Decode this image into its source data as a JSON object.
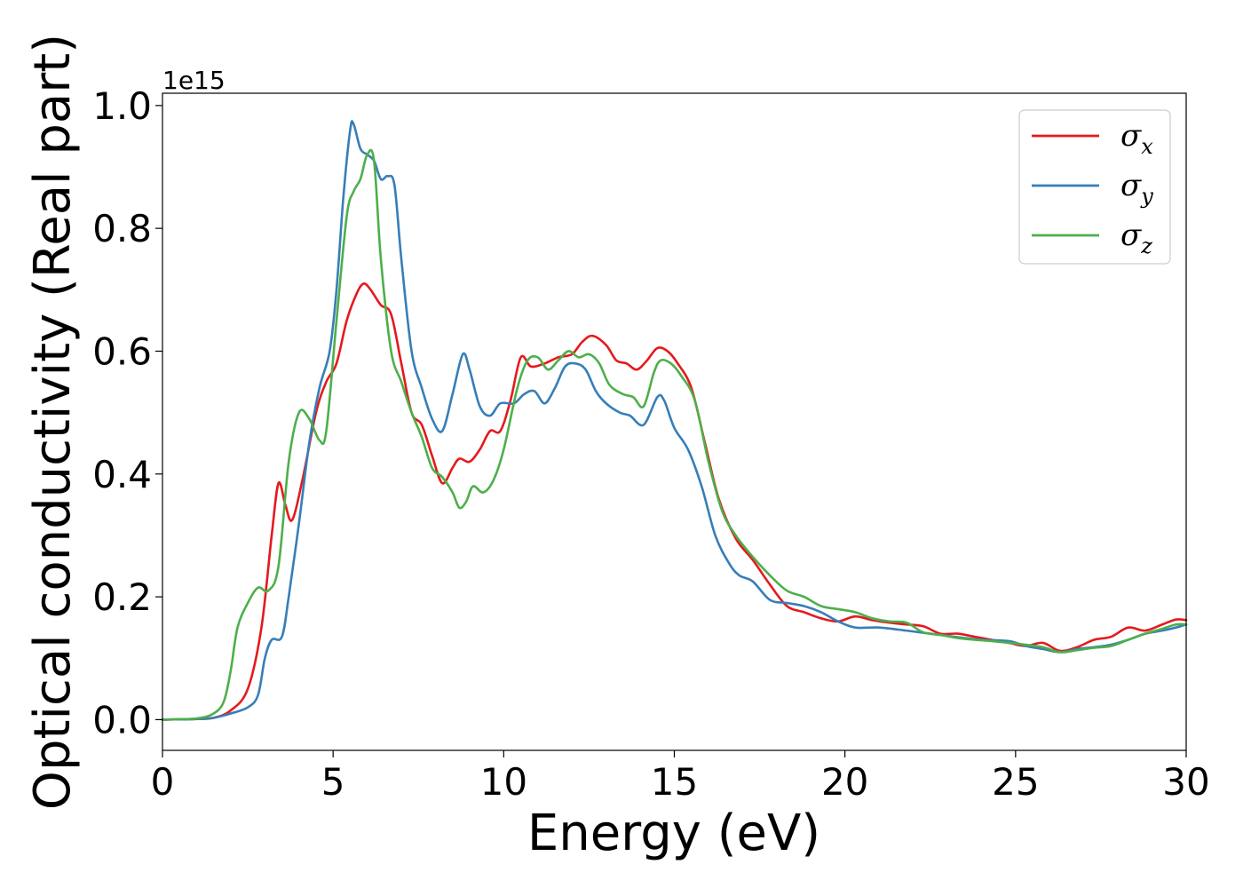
{
  "chart_data": {
    "type": "line",
    "title": "",
    "xlabel": "Energy (eV)",
    "ylabel": "Optical conductivity (Real part)",
    "y_offset_label": "1e15",
    "xlim": [
      0,
      30
    ],
    "ylim": [
      -0.05,
      1.02
    ],
    "x_ticks": [
      0,
      5,
      10,
      15,
      20,
      25,
      30
    ],
    "x_tick_labels": [
      "0",
      "5",
      "10",
      "15",
      "20",
      "25",
      "30"
    ],
    "y_ticks": [
      0.0,
      0.2,
      0.4,
      0.6,
      0.8,
      1.0
    ],
    "y_tick_labels": [
      "0.0",
      "0.2",
      "0.4",
      "0.6",
      "0.8",
      "1.0"
    ],
    "grid": false,
    "legend_position": "top-right",
    "series": [
      {
        "name": "σx",
        "legend_symbol": "σ",
        "legend_subscript": "x",
        "color": "#e41a1c",
        "points": [
          [
            0,
            0
          ],
          [
            1,
            0.001
          ],
          [
            1.5,
            0.003
          ],
          [
            2,
            0.015
          ],
          [
            2.5,
            0.05
          ],
          [
            2.9,
            0.15
          ],
          [
            3.2,
            0.3
          ],
          [
            3.4,
            0.385
          ],
          [
            3.6,
            0.35
          ],
          [
            3.8,
            0.325
          ],
          [
            4.1,
            0.39
          ],
          [
            4.5,
            0.5
          ],
          [
            4.8,
            0.55
          ],
          [
            5.1,
            0.58
          ],
          [
            5.4,
            0.65
          ],
          [
            5.7,
            0.695
          ],
          [
            5.9,
            0.71
          ],
          [
            6.1,
            0.7
          ],
          [
            6.4,
            0.675
          ],
          [
            6.7,
            0.66
          ],
          [
            7,
            0.58
          ],
          [
            7.3,
            0.5
          ],
          [
            7.6,
            0.48
          ],
          [
            7.9,
            0.43
          ],
          [
            8.2,
            0.385
          ],
          [
            8.5,
            0.41
          ],
          [
            8.7,
            0.425
          ],
          [
            9.0,
            0.42
          ],
          [
            9.3,
            0.44
          ],
          [
            9.6,
            0.47
          ],
          [
            9.9,
            0.47
          ],
          [
            10.2,
            0.52
          ],
          [
            10.5,
            0.59
          ],
          [
            10.8,
            0.575
          ],
          [
            11.2,
            0.58
          ],
          [
            11.6,
            0.59
          ],
          [
            12,
            0.595
          ],
          [
            12.3,
            0.615
          ],
          [
            12.6,
            0.625
          ],
          [
            13,
            0.61
          ],
          [
            13.3,
            0.585
          ],
          [
            13.6,
            0.58
          ],
          [
            13.9,
            0.57
          ],
          [
            14.2,
            0.585
          ],
          [
            14.5,
            0.605
          ],
          [
            14.8,
            0.6
          ],
          [
            15.1,
            0.58
          ],
          [
            15.5,
            0.54
          ],
          [
            15.9,
            0.45
          ],
          [
            16.3,
            0.36
          ],
          [
            16.8,
            0.295
          ],
          [
            17.3,
            0.26
          ],
          [
            17.8,
            0.22
          ],
          [
            18.3,
            0.185
          ],
          [
            18.8,
            0.175
          ],
          [
            19.3,
            0.165
          ],
          [
            19.8,
            0.16
          ],
          [
            20.3,
            0.168
          ],
          [
            20.8,
            0.162
          ],
          [
            21.3,
            0.158
          ],
          [
            21.8,
            0.155
          ],
          [
            22.3,
            0.152
          ],
          [
            22.8,
            0.14
          ],
          [
            23.3,
            0.14
          ],
          [
            23.8,
            0.135
          ],
          [
            24.3,
            0.13
          ],
          [
            24.8,
            0.125
          ],
          [
            25.3,
            0.12
          ],
          [
            25.8,
            0.125
          ],
          [
            26.3,
            0.112
          ],
          [
            26.8,
            0.118
          ],
          [
            27.3,
            0.13
          ],
          [
            27.8,
            0.135
          ],
          [
            28.3,
            0.15
          ],
          [
            28.8,
            0.145
          ],
          [
            29.3,
            0.155
          ],
          [
            29.7,
            0.163
          ],
          [
            30,
            0.162
          ]
        ]
      },
      {
        "name": "σy",
        "legend_symbol": "σ",
        "legend_subscript": "y",
        "color": "#377eb8",
        "points": [
          [
            0,
            0
          ],
          [
            1,
            0.001
          ],
          [
            1.5,
            0.003
          ],
          [
            2,
            0.01
          ],
          [
            2.5,
            0.02
          ],
          [
            2.8,
            0.04
          ],
          [
            3.0,
            0.1
          ],
          [
            3.2,
            0.13
          ],
          [
            3.5,
            0.135
          ],
          [
            3.7,
            0.2
          ],
          [
            4,
            0.32
          ],
          [
            4.3,
            0.45
          ],
          [
            4.6,
            0.54
          ],
          [
            4.9,
            0.6
          ],
          [
            5.1,
            0.7
          ],
          [
            5.3,
            0.85
          ],
          [
            5.5,
            0.96
          ],
          [
            5.6,
            0.97
          ],
          [
            5.8,
            0.93
          ],
          [
            6.0,
            0.92
          ],
          [
            6.2,
            0.91
          ],
          [
            6.4,
            0.88
          ],
          [
            6.6,
            0.885
          ],
          [
            6.8,
            0.87
          ],
          [
            7.0,
            0.75
          ],
          [
            7.3,
            0.6
          ],
          [
            7.6,
            0.54
          ],
          [
            7.9,
            0.49
          ],
          [
            8.2,
            0.47
          ],
          [
            8.5,
            0.53
          ],
          [
            8.8,
            0.595
          ],
          [
            9.0,
            0.57
          ],
          [
            9.3,
            0.51
          ],
          [
            9.6,
            0.495
          ],
          [
            9.9,
            0.515
          ],
          [
            10.3,
            0.515
          ],
          [
            10.6,
            0.53
          ],
          [
            10.9,
            0.535
          ],
          [
            11.2,
            0.515
          ],
          [
            11.5,
            0.54
          ],
          [
            11.8,
            0.575
          ],
          [
            12.1,
            0.58
          ],
          [
            12.4,
            0.57
          ],
          [
            12.7,
            0.535
          ],
          [
            13,
            0.515
          ],
          [
            13.4,
            0.5
          ],
          [
            13.7,
            0.495
          ],
          [
            14.1,
            0.48
          ],
          [
            14.5,
            0.525
          ],
          [
            14.7,
            0.52
          ],
          [
            15,
            0.475
          ],
          [
            15.4,
            0.44
          ],
          [
            15.8,
            0.38
          ],
          [
            16.2,
            0.3
          ],
          [
            16.6,
            0.255
          ],
          [
            16.9,
            0.235
          ],
          [
            17.3,
            0.225
          ],
          [
            17.8,
            0.195
          ],
          [
            18.3,
            0.19
          ],
          [
            18.8,
            0.185
          ],
          [
            19.3,
            0.175
          ],
          [
            19.8,
            0.16
          ],
          [
            20.3,
            0.15
          ],
          [
            21,
            0.15
          ],
          [
            21.8,
            0.145
          ],
          [
            22.5,
            0.14
          ],
          [
            23.2,
            0.135
          ],
          [
            24,
            0.13
          ],
          [
            24.8,
            0.128
          ],
          [
            25.3,
            0.12
          ],
          [
            25.8,
            0.115
          ],
          [
            26.3,
            0.11
          ],
          [
            26.8,
            0.115
          ],
          [
            27.3,
            0.118
          ],
          [
            27.8,
            0.122
          ],
          [
            28.3,
            0.13
          ],
          [
            28.8,
            0.14
          ],
          [
            29.3,
            0.145
          ],
          [
            29.7,
            0.15
          ],
          [
            30,
            0.155
          ]
        ]
      },
      {
        "name": "σz",
        "legend_symbol": "σ",
        "legend_subscript": "z",
        "color": "#4daf4a",
        "points": [
          [
            0,
            0
          ],
          [
            1,
            0.002
          ],
          [
            1.5,
            0.01
          ],
          [
            1.8,
            0.03
          ],
          [
            2.0,
            0.08
          ],
          [
            2.2,
            0.15
          ],
          [
            2.5,
            0.19
          ],
          [
            2.8,
            0.215
          ],
          [
            3.1,
            0.21
          ],
          [
            3.4,
            0.25
          ],
          [
            3.7,
            0.42
          ],
          [
            4.0,
            0.5
          ],
          [
            4.3,
            0.49
          ],
          [
            4.6,
            0.455
          ],
          [
            4.8,
            0.47
          ],
          [
            5.1,
            0.65
          ],
          [
            5.4,
            0.82
          ],
          [
            5.6,
            0.86
          ],
          [
            5.8,
            0.88
          ],
          [
            6.0,
            0.92
          ],
          [
            6.2,
            0.91
          ],
          [
            6.4,
            0.75
          ],
          [
            6.7,
            0.6
          ],
          [
            7.0,
            0.55
          ],
          [
            7.3,
            0.5
          ],
          [
            7.6,
            0.46
          ],
          [
            7.9,
            0.41
          ],
          [
            8.2,
            0.395
          ],
          [
            8.5,
            0.37
          ],
          [
            8.7,
            0.345
          ],
          [
            8.9,
            0.355
          ],
          [
            9.1,
            0.38
          ],
          [
            9.4,
            0.37
          ],
          [
            9.7,
            0.39
          ],
          [
            10,
            0.44
          ],
          [
            10.4,
            0.54
          ],
          [
            10.7,
            0.585
          ],
          [
            11.0,
            0.59
          ],
          [
            11.3,
            0.57
          ],
          [
            11.6,
            0.585
          ],
          [
            11.9,
            0.6
          ],
          [
            12.2,
            0.59
          ],
          [
            12.5,
            0.595
          ],
          [
            12.8,
            0.58
          ],
          [
            13.1,
            0.545
          ],
          [
            13.5,
            0.53
          ],
          [
            13.8,
            0.525
          ],
          [
            14.1,
            0.51
          ],
          [
            14.4,
            0.565
          ],
          [
            14.6,
            0.585
          ],
          [
            14.9,
            0.58
          ],
          [
            15.2,
            0.56
          ],
          [
            15.6,
            0.52
          ],
          [
            16,
            0.42
          ],
          [
            16.4,
            0.34
          ],
          [
            16.8,
            0.3
          ],
          [
            17.3,
            0.265
          ],
          [
            17.8,
            0.235
          ],
          [
            18.3,
            0.21
          ],
          [
            18.8,
            0.2
          ],
          [
            19.3,
            0.185
          ],
          [
            19.8,
            0.18
          ],
          [
            20.3,
            0.175
          ],
          [
            20.8,
            0.165
          ],
          [
            21.3,
            0.16
          ],
          [
            21.8,
            0.158
          ],
          [
            22.3,
            0.142
          ],
          [
            22.8,
            0.138
          ],
          [
            23.3,
            0.133
          ],
          [
            23.8,
            0.13
          ],
          [
            24.3,
            0.128
          ],
          [
            24.8,
            0.125
          ],
          [
            25.3,
            0.122
          ],
          [
            25.8,
            0.118
          ],
          [
            26.3,
            0.11
          ],
          [
            26.8,
            0.113
          ],
          [
            27.3,
            0.117
          ],
          [
            27.8,
            0.12
          ],
          [
            28.3,
            0.13
          ],
          [
            28.8,
            0.14
          ],
          [
            29.3,
            0.148
          ],
          [
            29.7,
            0.155
          ],
          [
            30,
            0.155
          ]
        ]
      }
    ]
  }
}
